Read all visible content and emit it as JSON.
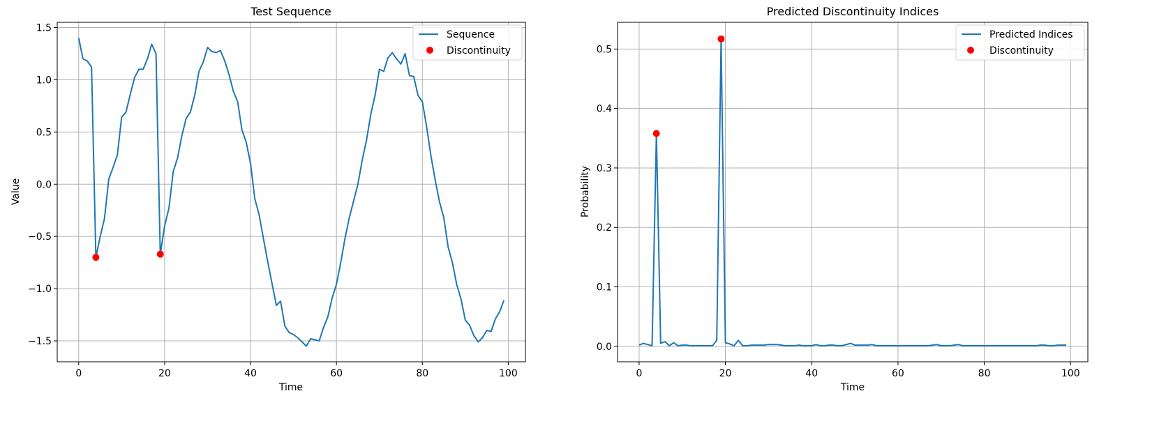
{
  "chart_data": [
    {
      "type": "line",
      "title": "Test Sequence",
      "xlabel": "Time",
      "ylabel": "Value",
      "xlim": [
        -5,
        104
      ],
      "ylim": [
        -1.7,
        1.55
      ],
      "xticks": [
        0,
        20,
        40,
        60,
        80,
        100
      ],
      "xtick_labels": [
        "0",
        "20",
        "40",
        "60",
        "80",
        "100"
      ],
      "yticks": [
        1.5,
        1.0,
        0.5,
        0.0,
        -0.5,
        -1.0,
        -1.5
      ],
      "ytick_labels": [
        "1.5",
        "1.0",
        "0.5",
        "0.0",
        "−0.5",
        "−1.0",
        "−1.5"
      ],
      "grid": true,
      "legend_position": "upper right",
      "series": [
        {
          "name": "Sequence",
          "kind": "line",
          "color": "#1f77b4",
          "x_start": 0,
          "values": [
            1.4,
            1.2,
            1.18,
            1.12,
            -0.7,
            -0.5,
            -0.33,
            0.05,
            0.16,
            0.28,
            0.64,
            0.69,
            0.86,
            1.02,
            1.1,
            1.1,
            1.2,
            1.34,
            1.25,
            -0.67,
            -0.4,
            -0.23,
            0.12,
            0.25,
            0.46,
            0.63,
            0.69,
            0.85,
            1.08,
            1.17,
            1.31,
            1.27,
            1.26,
            1.28,
            1.18,
            1.05,
            0.89,
            0.79,
            0.52,
            0.4,
            0.2,
            -0.14,
            -0.29,
            -0.52,
            -0.74,
            -0.95,
            -1.16,
            -1.12,
            -1.36,
            -1.42,
            -1.44,
            -1.47,
            -1.51,
            -1.55,
            -1.48,
            -1.49,
            -1.5,
            -1.37,
            -1.27,
            -1.09,
            -0.96,
            -0.75,
            -0.52,
            -0.32,
            -0.16,
            0.0,
            0.23,
            0.42,
            0.67,
            0.85,
            1.1,
            1.08,
            1.21,
            1.26,
            1.2,
            1.15,
            1.25,
            1.04,
            1.03,
            0.85,
            0.79,
            0.55,
            0.27,
            0.04,
            -0.17,
            -0.32,
            -0.6,
            -0.75,
            -0.96,
            -1.1,
            -1.3,
            -1.35,
            -1.45,
            -1.51,
            -1.47,
            -1.4,
            -1.41,
            -1.29,
            -1.22,
            -1.11
          ]
        },
        {
          "name": "Discontinuity",
          "kind": "scatter",
          "color": "#ff0000",
          "x": [
            4,
            19
          ],
          "y": [
            -0.7,
            -0.67
          ]
        }
      ]
    },
    {
      "type": "line",
      "title": "Predicted Discontinuity Indices",
      "xlabel": "Time",
      "ylabel": "Probability",
      "xlim": [
        -5,
        104
      ],
      "ylim": [
        -0.026,
        0.545
      ],
      "xticks": [
        0,
        20,
        40,
        60,
        80,
        100
      ],
      "xtick_labels": [
        "0",
        "20",
        "40",
        "60",
        "80",
        "100"
      ],
      "yticks": [
        0.5,
        0.4,
        0.3,
        0.2,
        0.1,
        0.0
      ],
      "ytick_labels": [
        "0.5",
        "0.4",
        "0.3",
        "0.2",
        "0.1",
        "0.0"
      ],
      "grid": true,
      "legend_position": "upper right",
      "series": [
        {
          "name": "Predicted Indices",
          "kind": "line",
          "color": "#1f77b4",
          "x_start": 0,
          "values": [
            0.002,
            0.005,
            0.003,
            0.001,
            0.358,
            0.005,
            0.008,
            0.001,
            0.006,
            0.001,
            0.002,
            0.002,
            0.001,
            0.001,
            0.001,
            0.001,
            0.001,
            0.001,
            0.01,
            0.517,
            0.006,
            0.004,
            0.001,
            0.01,
            0.001,
            0.001,
            0.002,
            0.002,
            0.002,
            0.002,
            0.003,
            0.003,
            0.003,
            0.002,
            0.001,
            0.001,
            0.001,
            0.002,
            0.001,
            0.001,
            0.001,
            0.003,
            0.001,
            0.001,
            0.002,
            0.002,
            0.001,
            0.001,
            0.003,
            0.005,
            0.002,
            0.002,
            0.002,
            0.002,
            0.003,
            0.001,
            0.001,
            0.001,
            0.001,
            0.001,
            0.001,
            0.001,
            0.001,
            0.001,
            0.001,
            0.001,
            0.001,
            0.001,
            0.002,
            0.003,
            0.001,
            0.001,
            0.001,
            0.002,
            0.003,
            0.001,
            0.001,
            0.001,
            0.001,
            0.001,
            0.001,
            0.001,
            0.001,
            0.001,
            0.001,
            0.001,
            0.001,
            0.001,
            0.001,
            0.001,
            0.001,
            0.001,
            0.001,
            0.002,
            0.002,
            0.001,
            0.001,
            0.002,
            0.002,
            0.002
          ]
        },
        {
          "name": "Discontinuity",
          "kind": "scatter",
          "color": "#ff0000",
          "x": [
            4,
            19
          ],
          "y": [
            0.358,
            0.517
          ]
        }
      ]
    }
  ],
  "charts": [
    {
      "title": "Test Sequence",
      "xlabel": "Time",
      "ylabel": "Value",
      "legend": [
        {
          "label": "Sequence",
          "marker": "line",
          "color": "#1f77b4"
        },
        {
          "label": "Discontinuity",
          "marker": "dot",
          "color": "#ff0000"
        }
      ]
    },
    {
      "title": "Predicted Discontinuity Indices",
      "xlabel": "Time",
      "ylabel": "Probability",
      "legend": [
        {
          "label": "Predicted Indices",
          "marker": "line",
          "color": "#1f77b4"
        },
        {
          "label": "Discontinuity",
          "marker": "dot",
          "color": "#ff0000"
        }
      ]
    }
  ],
  "colors": {
    "line": "#1f77b4",
    "marker": "#ff0000",
    "grid": "#b0b0b0",
    "axes": "#000000"
  }
}
